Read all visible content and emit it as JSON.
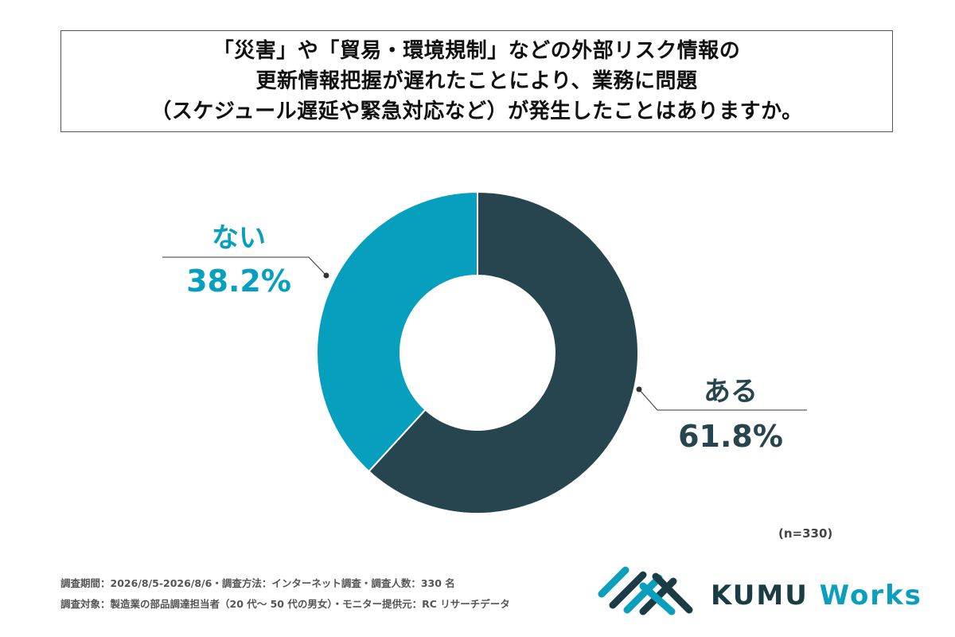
{
  "title": {
    "lines": [
      "「災害」や「貿易・環境規制」などの外部リスク情報の",
      "更新情報把握が遅れたことにより、業務に問題",
      "（スケジュール遅延や緊急対応など）が発生したことはありますか。"
    ]
  },
  "chart_data": {
    "type": "pie",
    "donut": true,
    "slices": [
      {
        "label": "ある",
        "value": 61.8,
        "display": "61.8%",
        "color": "#26454e"
      },
      {
        "label": "ない",
        "value": 38.2,
        "display": "38.2%",
        "color": "#069fbd"
      }
    ],
    "sample_size": "(n=330)"
  },
  "footnotes": {
    "line1": "調査期間：2026/8/5-2026/8/6・調査方法：インターネット調査・調査人数：330 名",
    "line2": "調査対象：製造業の部品調達担当者（20 代～ 50 代の男女）・モニター提供元：RC リサーチデータ"
  },
  "logo": {
    "brand": "KUMU",
    "suffix": "Works",
    "colors": {
      "dark": "#1a3d45",
      "accent": "#0b9fbd"
    }
  }
}
